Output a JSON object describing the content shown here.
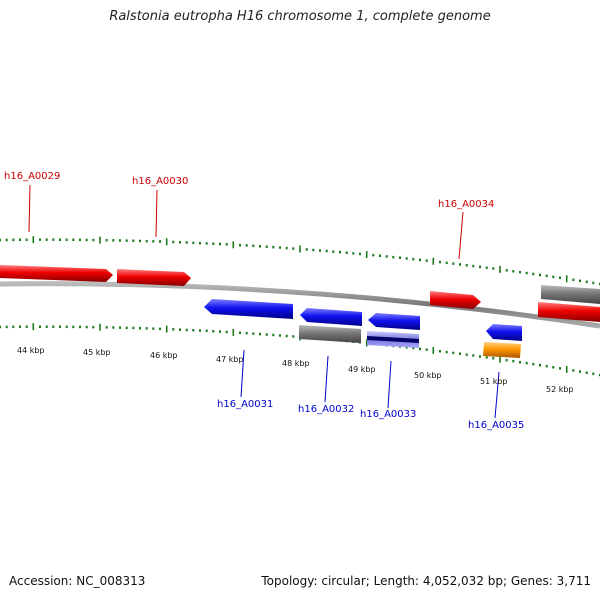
{
  "title": "Ralstonia eutropha H16 chromosome 1, complete genome",
  "footer": {
    "accession": "Accession: NC_008313",
    "summary": "Topology: circular; Length: 4,052,032 bp; Genes: 3,711"
  },
  "colors": {
    "forward": "#ee0000",
    "reverse": "#1111ee",
    "other": "#777777",
    "rna": "#ff9900",
    "tick": "#1b7a1b",
    "backbone": "#888888",
    "forward_label": "#cc0000",
    "reverse_label": "#0000cc"
  },
  "ruler": {
    "labels": [
      "44 kbp",
      "45 kbp",
      "46 kbp",
      "47 kbp",
      "48 kbp",
      "49 kbp",
      "50 kbp",
      "51 kbp",
      "52 kbp"
    ]
  },
  "genes": [
    {
      "label": "h16_A0029",
      "strand": "forward",
      "type": "CDS"
    },
    {
      "label": "h16_A0030",
      "strand": "forward",
      "type": "CDS"
    },
    {
      "label": "h16_A0034",
      "strand": "forward",
      "type": "CDS"
    },
    {
      "label": "h16_A0031",
      "strand": "reverse",
      "type": "CDS"
    },
    {
      "label": "h16_A0032",
      "strand": "reverse",
      "type": "CDS"
    },
    {
      "label": "h16_A0033",
      "strand": "reverse",
      "type": "CDS"
    },
    {
      "label": "h16_A0035",
      "strand": "reverse",
      "type": "CDS"
    }
  ]
}
